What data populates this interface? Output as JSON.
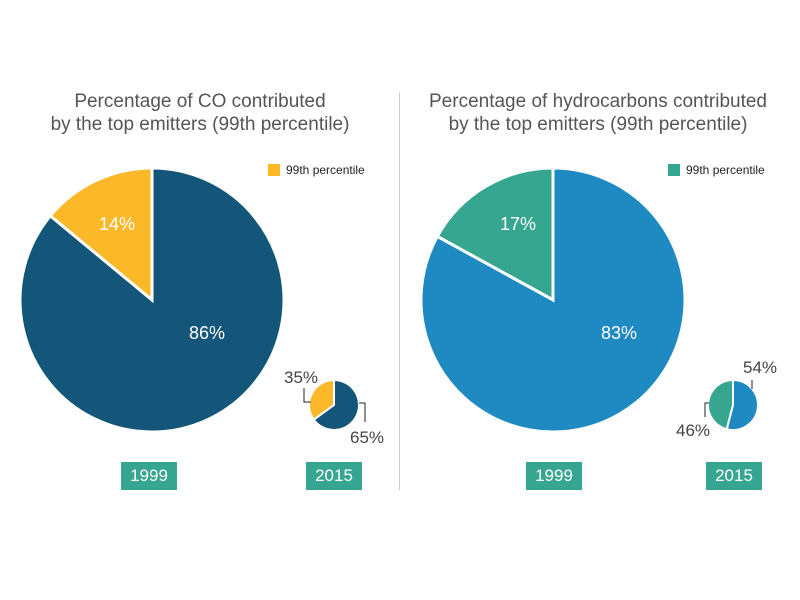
{
  "colors": {
    "co_large": "#14567a",
    "co_highlight": "#fbb829",
    "hc_large": "#1f89c2",
    "hc_highlight": "#36a690",
    "year_badge": "#36a690",
    "callout_line": "#222222"
  },
  "left_panel": {
    "title_line1": "Percentage of CO contributed",
    "title_line2": "by the top emitters (99th percentile)",
    "legend_label": "99th percentile",
    "year_1999": "1999",
    "year_2015": "2015"
  },
  "right_panel": {
    "title_line1": "Percentage of hydrocarbons contributed",
    "title_line2": "by the top emitters (99th percentile)",
    "legend_label": "99th percentile",
    "year_1999": "1999",
    "year_2015": "2015"
  },
  "chart_data": [
    {
      "type": "pie",
      "title": "Percentage of CO contributed by the top emitters (99th percentile)",
      "year": "1999",
      "slices": [
        {
          "name": "99th percentile",
          "value": 14,
          "label": "14%"
        },
        {
          "name": "",
          "value": 86,
          "label": "86%"
        }
      ]
    },
    {
      "type": "pie",
      "title": "Percentage of CO contributed by the top emitters (99th percentile)",
      "year": "2015",
      "slices": [
        {
          "name": "99th percentile",
          "value": 35,
          "label": "35%"
        },
        {
          "name": "",
          "value": 65,
          "label": "65%"
        }
      ]
    },
    {
      "type": "pie",
      "title": "Percentage of hydrocarbons contributed by the top emitters (99th percentile)",
      "year": "1999",
      "slices": [
        {
          "name": "99th percentile",
          "value": 17,
          "label": "17%"
        },
        {
          "name": "",
          "value": 83,
          "label": "83%"
        }
      ]
    },
    {
      "type": "pie",
      "title": "Percentage of hydrocarbons contributed by the top emitters (99th percentile)",
      "year": "2015",
      "slices": [
        {
          "name": "99th percentile",
          "value": 46,
          "label": "46%"
        },
        {
          "name": "",
          "value": 54,
          "label": "54%"
        }
      ]
    }
  ]
}
